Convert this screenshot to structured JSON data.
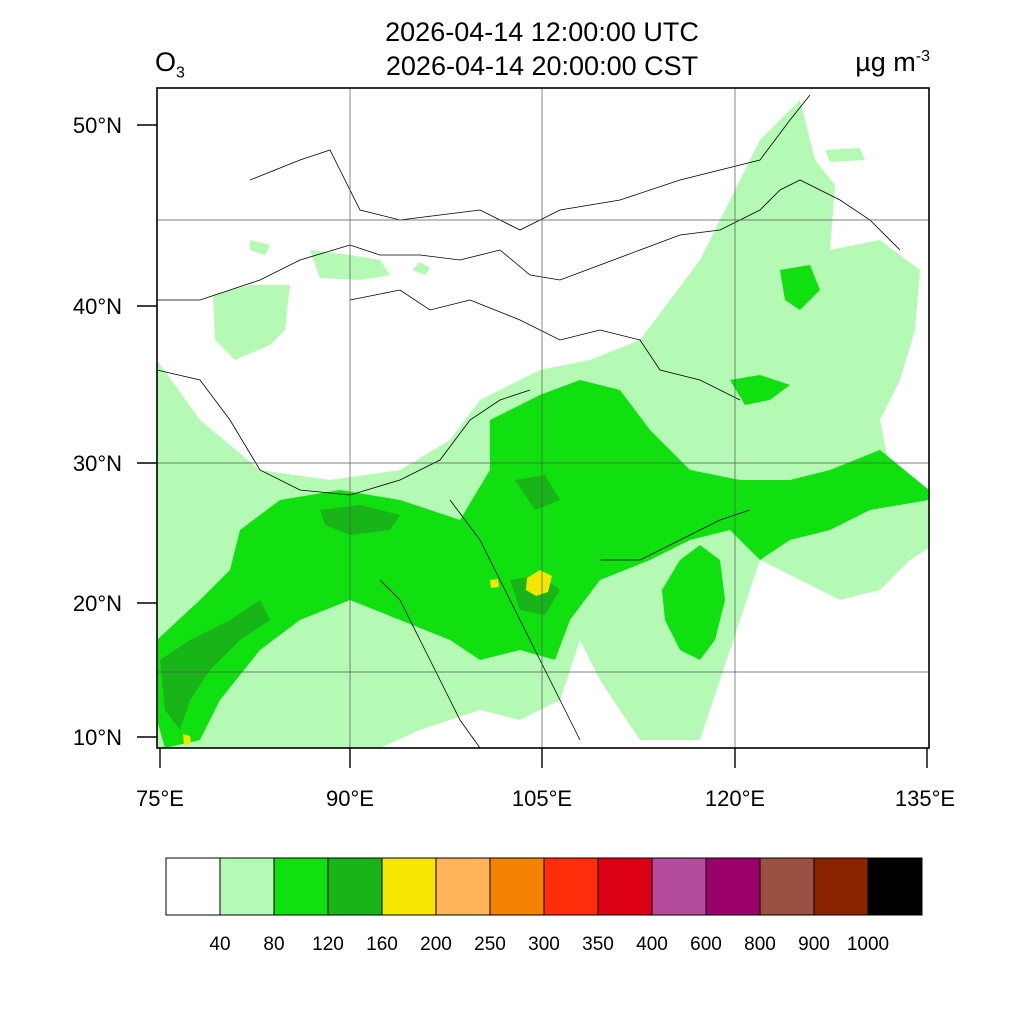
{
  "title": {
    "line1": "2026-04-14 12:00:00 UTC",
    "line2": "2026-04-14 20:00:00 CST"
  },
  "variable": {
    "base": "O",
    "subscript": "3"
  },
  "units": {
    "base": "µg m",
    "superscript": "-3"
  },
  "axes": {
    "lon_ticks": [
      "75°E",
      "90°E",
      "105°E",
      "120°E",
      "135°E"
    ],
    "lat_ticks": [
      "50°N",
      "40°N",
      "30°N",
      "20°N",
      "10°N"
    ]
  },
  "colorbar": {
    "colors": [
      "#ffffff",
      "#b4fab4",
      "#10e010",
      "#18b418",
      "#f5e600",
      "#ffb45a",
      "#f58200",
      "#ff2d0a",
      "#dc0014",
      "#b44b9b",
      "#9b0069",
      "#9b5041",
      "#8c2300",
      "#000000"
    ],
    "labels": [
      "40",
      "80",
      "120",
      "160",
      "200",
      "250",
      "300",
      "350",
      "400",
      "600",
      "800",
      "900",
      "1000"
    ]
  }
}
